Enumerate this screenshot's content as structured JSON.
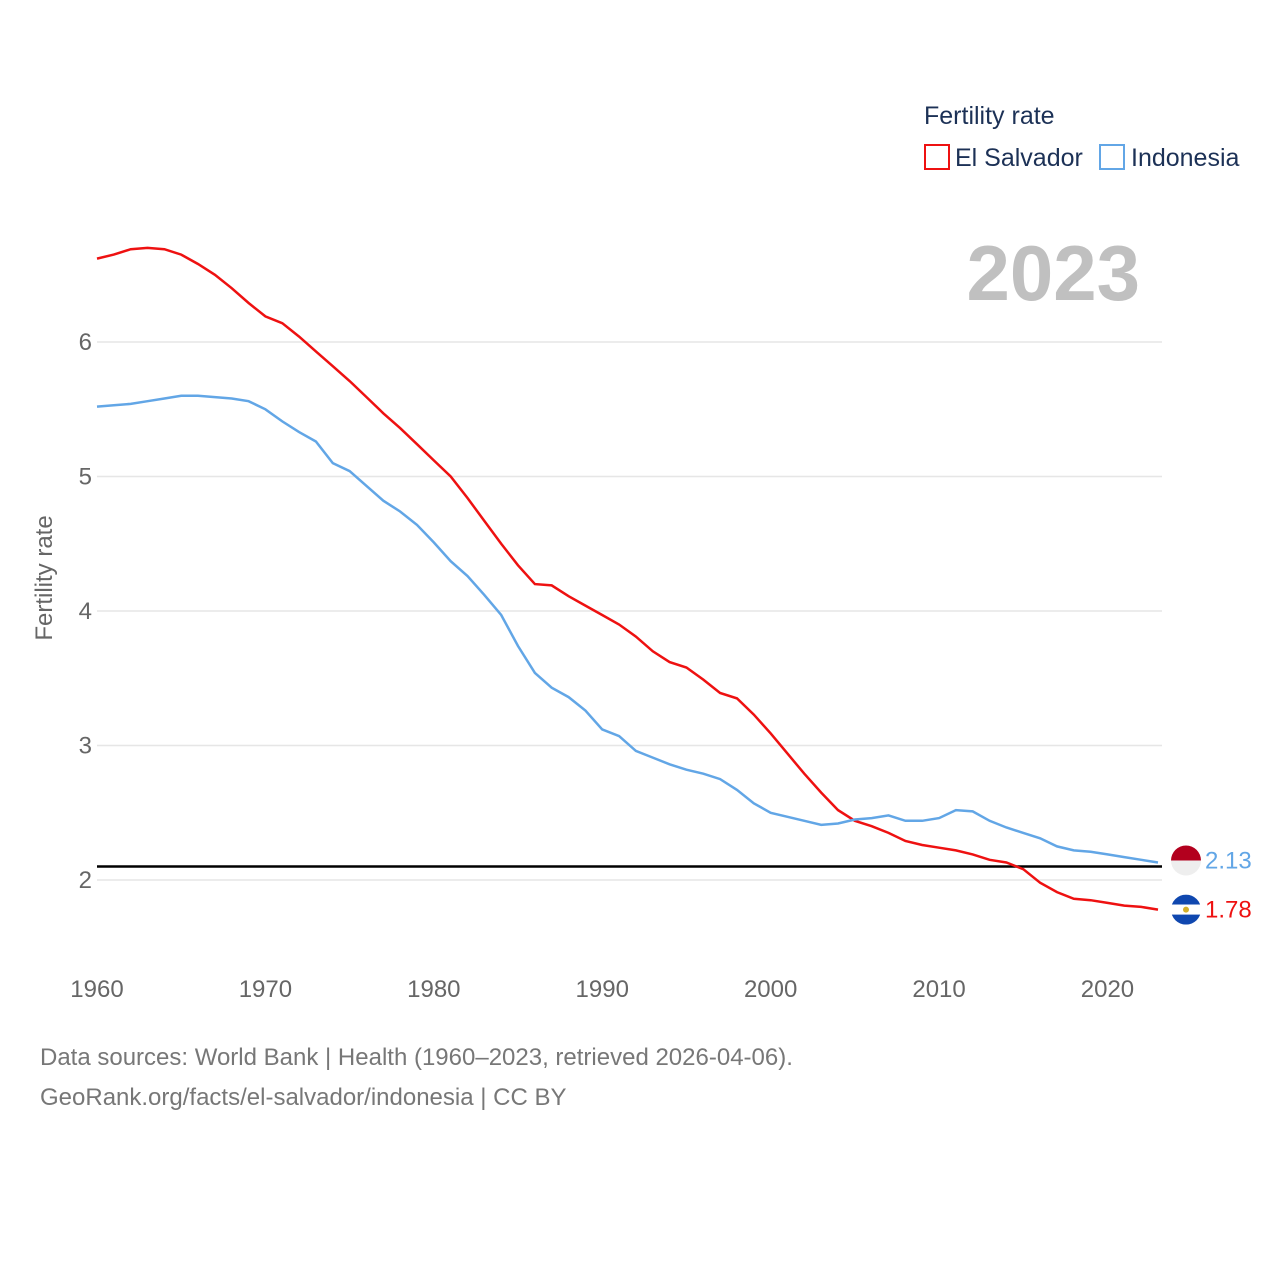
{
  "colors": {
    "el_salvador": "#ee1111",
    "indonesia": "#62a6e6",
    "grid": "#e6e6e6",
    "reference_line": "#000000",
    "year": "#c0c0c0"
  },
  "year_label": "2023",
  "legend": {
    "title": "Fertility rate",
    "items": [
      "El Salvador",
      "Indonesia"
    ]
  },
  "footer": {
    "line1": "Data sources: World Bank | Health (1960–2023, retrieved 2026-04-06).",
    "line2": "GeoRank.org/facts/el-salvador/indonesia | CC BY"
  },
  "chart_data": {
    "type": "line",
    "title": "",
    "xlabel": "",
    "ylabel": "Fertility rate",
    "xlim": [
      1960,
      2023
    ],
    "ylim": [
      1.4,
      7.0
    ],
    "x_ticks": [
      1960,
      1970,
      1980,
      1990,
      2000,
      2010,
      2020
    ],
    "y_ticks": [
      2,
      3,
      4,
      5,
      6
    ],
    "reference_line": 2.1,
    "end_labels": [
      "2.13",
      "1.78"
    ],
    "series": [
      {
        "name": "El Salvador",
        "flag_icon": "el-salvador-flag-icon",
        "end_value": 1.78,
        "x": [
          1960,
          1961,
          1962,
          1963,
          1964,
          1965,
          1966,
          1967,
          1968,
          1969,
          1970,
          1971,
          1972,
          1973,
          1974,
          1975,
          1976,
          1977,
          1978,
          1979,
          1980,
          1981,
          1982,
          1983,
          1984,
          1985,
          1986,
          1987,
          1988,
          1989,
          1990,
          1991,
          1992,
          1993,
          1994,
          1995,
          1996,
          1997,
          1998,
          1999,
          2000,
          2001,
          2002,
          2003,
          2004,
          2005,
          2006,
          2007,
          2008,
          2009,
          2010,
          2011,
          2012,
          2013,
          2014,
          2015,
          2016,
          2017,
          2018,
          2019,
          2020,
          2021,
          2022,
          2023
        ],
        "values": [
          6.62,
          6.65,
          6.69,
          6.7,
          6.69,
          6.65,
          6.58,
          6.5,
          6.4,
          6.29,
          6.19,
          6.14,
          6.04,
          5.93,
          5.82,
          5.71,
          5.59,
          5.47,
          5.36,
          5.24,
          5.12,
          5.0,
          4.84,
          4.67,
          4.5,
          4.34,
          4.2,
          4.19,
          4.11,
          4.04,
          3.97,
          3.9,
          3.81,
          3.7,
          3.62,
          3.58,
          3.49,
          3.39,
          3.35,
          3.23,
          3.09,
          2.94,
          2.79,
          2.65,
          2.52,
          2.44,
          2.4,
          2.35,
          2.29,
          2.26,
          2.24,
          2.22,
          2.19,
          2.15,
          2.13,
          2.08,
          1.98,
          1.91,
          1.86,
          1.85,
          1.83,
          1.81,
          1.8,
          1.78
        ]
      },
      {
        "name": "Indonesia",
        "flag_icon": "indonesia-flag-icon",
        "end_value": 2.13,
        "x": [
          1960,
          1961,
          1962,
          1963,
          1964,
          1965,
          1966,
          1967,
          1968,
          1969,
          1970,
          1971,
          1972,
          1973,
          1974,
          1975,
          1976,
          1977,
          1978,
          1979,
          1980,
          1981,
          1982,
          1983,
          1984,
          1985,
          1986,
          1987,
          1988,
          1989,
          1990,
          1991,
          1992,
          1993,
          1994,
          1995,
          1996,
          1997,
          1998,
          1999,
          2000,
          2001,
          2002,
          2003,
          2004,
          2005,
          2006,
          2007,
          2008,
          2009,
          2010,
          2011,
          2012,
          2013,
          2014,
          2015,
          2016,
          2017,
          2018,
          2019,
          2020,
          2021,
          2022,
          2023
        ],
        "values": [
          5.52,
          5.53,
          5.54,
          5.56,
          5.58,
          5.6,
          5.6,
          5.59,
          5.58,
          5.56,
          5.5,
          5.41,
          5.33,
          5.26,
          5.1,
          5.04,
          4.93,
          4.82,
          4.74,
          4.64,
          4.51,
          4.37,
          4.26,
          4.12,
          3.97,
          3.74,
          3.54,
          3.43,
          3.36,
          3.26,
          3.12,
          3.07,
          2.96,
          2.91,
          2.86,
          2.82,
          2.79,
          2.75,
          2.67,
          2.57,
          2.5,
          2.47,
          2.44,
          2.41,
          2.42,
          2.45,
          2.46,
          2.48,
          2.44,
          2.44,
          2.46,
          2.52,
          2.51,
          2.44,
          2.39,
          2.35,
          2.31,
          2.25,
          2.22,
          2.21,
          2.19,
          2.17,
          2.15,
          2.13
        ]
      }
    ]
  }
}
